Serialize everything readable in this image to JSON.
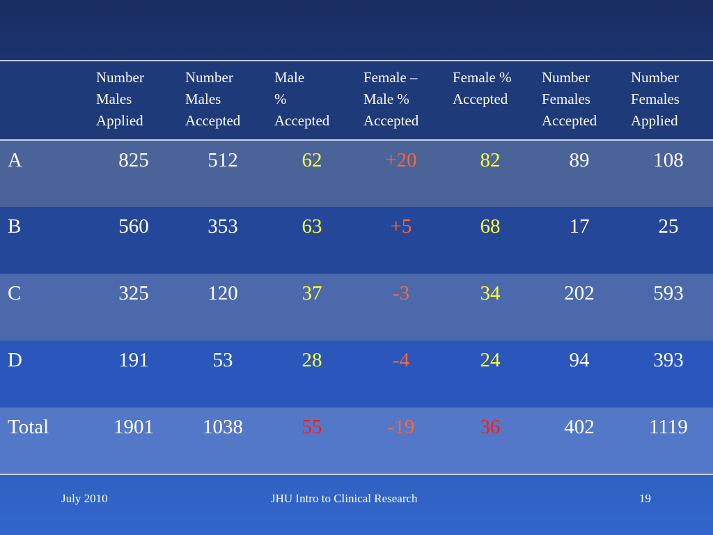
{
  "headers": [
    "",
    "Number Males Applied",
    "Number Males Accepted",
    "Male % Accepted",
    "Female – Male % Accepted",
    "Female % Accepted",
    "Number Females Accepted",
    "Number Females Applied"
  ],
  "header_lines": {
    "h1": [
      "Number",
      "Males",
      "Applied"
    ],
    "h2": [
      "Number",
      "Males",
      "Accepted"
    ],
    "h3": [
      "Male",
      "%",
      "Accepted"
    ],
    "h4": [
      "Female –",
      "Male  %",
      "Accepted"
    ],
    "h5": [
      "Female %",
      "Accepted",
      ""
    ],
    "h6": [
      "Number",
      "Females",
      "Accepted"
    ],
    "h7": [
      "Number",
      "Females",
      "Applied"
    ]
  },
  "rows": [
    {
      "label": "A",
      "males_applied": "825",
      "males_accepted": "512",
      "male_pct": "62",
      "diff": "+20",
      "female_pct": "82",
      "females_accepted": "89",
      "females_applied": "108"
    },
    {
      "label": "B",
      "males_applied": "560",
      "males_accepted": "353",
      "male_pct": "63",
      "diff": "+5",
      "female_pct": "68",
      "females_accepted": "17",
      "females_applied": "25"
    },
    {
      "label": "C",
      "males_applied": "325",
      "males_accepted": "120",
      "male_pct": "37",
      "diff": "-3",
      "female_pct": "34",
      "females_accepted": "202",
      "females_applied": "593"
    },
    {
      "label": "D",
      "males_applied": "191",
      "males_accepted": "53",
      "male_pct": "28",
      "diff": "-4",
      "female_pct": "24",
      "females_accepted": "94",
      "females_applied": "393"
    },
    {
      "label": "Total",
      "males_applied": "1901",
      "males_accepted": "1038",
      "male_pct": "55",
      "diff": "-19",
      "female_pct": "36",
      "females_accepted": "402",
      "females_applied": "1119"
    }
  ],
  "colors": {
    "pct_highlight": "#ffff33",
    "diff_highlight": "#ff6633",
    "total_pct_highlight": "#ff1a1a"
  },
  "footer": {
    "date": "July 2010",
    "course": "JHU Intro to Clinical Research",
    "page": "19"
  }
}
